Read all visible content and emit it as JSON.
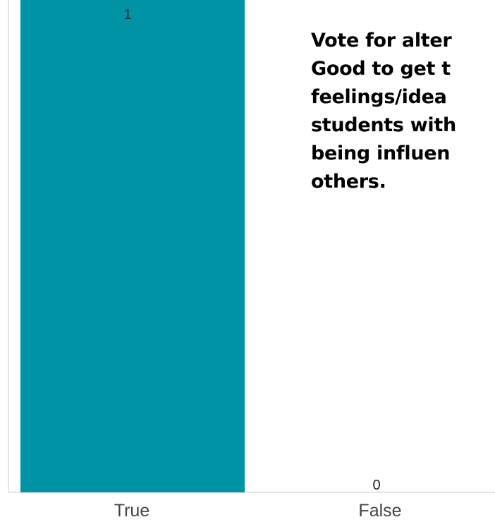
{
  "chart_data": {
    "type": "bar",
    "categories": [
      "True",
      "False"
    ],
    "values": [
      1,
      0
    ],
    "data_labels": [
      "1",
      "0"
    ],
    "title": "",
    "xlabel": "",
    "ylabel": "",
    "ylim": [
      0,
      1
    ],
    "grid": false,
    "bar_color": "#0093a6",
    "axis_color": "#dddddd",
    "label_color": "#444444"
  },
  "overlay": {
    "lines": [
      "Vote for alter",
      "Good to get t",
      "feelings/idea",
      "students with",
      "being influen",
      "others."
    ]
  }
}
